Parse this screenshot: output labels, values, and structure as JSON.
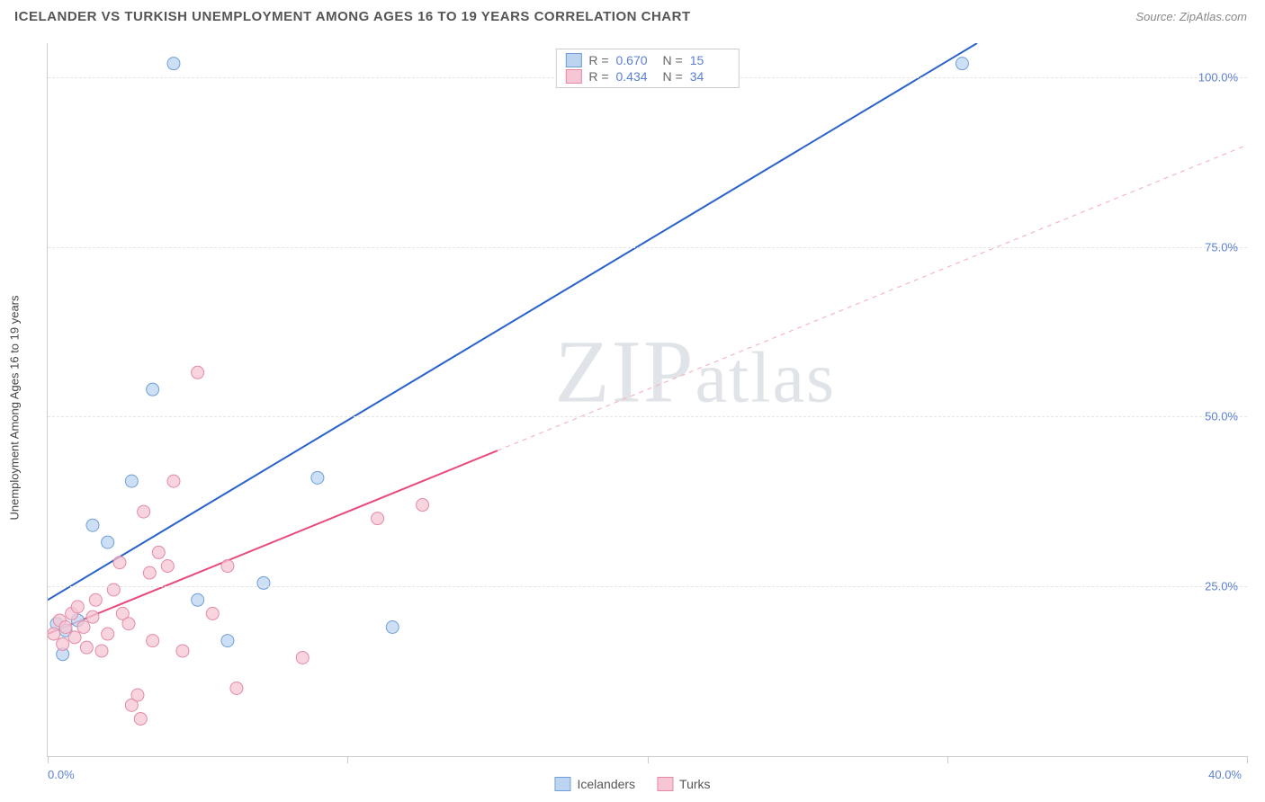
{
  "title": "ICELANDER VS TURKISH UNEMPLOYMENT AMONG AGES 16 TO 19 YEARS CORRELATION CHART",
  "source": "Source: ZipAtlas.com",
  "y_axis_title": "Unemployment Among Ages 16 to 19 years",
  "watermark": "ZIPatlas",
  "chart": {
    "type": "scatter",
    "xlim": [
      0,
      40
    ],
    "ylim": [
      0,
      105
    ],
    "x_ticks": [
      0,
      10,
      20,
      30,
      40
    ],
    "x_tick_labels": [
      "0.0%",
      "",
      "",
      "",
      "40.0%"
    ],
    "y_ticks": [
      25,
      50,
      75,
      100
    ],
    "y_tick_labels": [
      "25.0%",
      "50.0%",
      "75.0%",
      "100.0%"
    ],
    "grid_color": "#e5e5e5",
    "axis_color": "#cccccc",
    "tick_label_color": "#5b7fd1",
    "background_color": "#ffffff",
    "series": [
      {
        "name": "Icelanders",
        "color_fill": "#bcd4f0",
        "color_stroke": "#6f9fd8",
        "marker_radius": 7,
        "marker_opacity": 0.75,
        "R": "0.670",
        "N": "15",
        "trend": {
          "x1": 0,
          "y1": 23,
          "x2": 31,
          "y2": 105,
          "stroke": "#2a63c9",
          "width": 2,
          "dash": "none"
        },
        "trend_ext": null,
        "points": [
          [
            0.3,
            19.5
          ],
          [
            0.5,
            15.0
          ],
          [
            0.6,
            18.5
          ],
          [
            1.0,
            20.0
          ],
          [
            1.5,
            34.0
          ],
          [
            2.0,
            31.5
          ],
          [
            2.8,
            40.5
          ],
          [
            3.5,
            54.0
          ],
          [
            4.2,
            102.0
          ],
          [
            5.0,
            23.0
          ],
          [
            6.0,
            17.0
          ],
          [
            7.2,
            25.5
          ],
          [
            9.0,
            41.0
          ],
          [
            11.5,
            19.0
          ],
          [
            30.5,
            102.0
          ]
        ]
      },
      {
        "name": "Turks",
        "color_fill": "#f6c6d4",
        "color_stroke": "#e48aa5",
        "marker_radius": 7,
        "marker_opacity": 0.75,
        "R": "0.434",
        "N": "34",
        "trend": {
          "x1": 0,
          "y1": 18,
          "x2": 15,
          "y2": 45,
          "stroke": "#e84a7a",
          "width": 2,
          "dash": "none"
        },
        "trend_ext": {
          "x1": 15,
          "y1": 45,
          "x2": 40,
          "y2": 90,
          "stroke": "#f4b6c8",
          "width": 1.2,
          "dash": "5,5"
        },
        "points": [
          [
            0.2,
            18.0
          ],
          [
            0.4,
            20.0
          ],
          [
            0.5,
            16.5
          ],
          [
            0.6,
            19.0
          ],
          [
            0.8,
            21.0
          ],
          [
            0.9,
            17.5
          ],
          [
            1.0,
            22.0
          ],
          [
            1.2,
            19.0
          ],
          [
            1.3,
            16.0
          ],
          [
            1.5,
            20.5
          ],
          [
            1.6,
            23.0
          ],
          [
            1.8,
            15.5
          ],
          [
            2.0,
            18.0
          ],
          [
            2.2,
            24.5
          ],
          [
            2.4,
            28.5
          ],
          [
            2.5,
            21.0
          ],
          [
            2.7,
            19.5
          ],
          [
            2.8,
            7.5
          ],
          [
            3.0,
            9.0
          ],
          [
            3.1,
            5.5
          ],
          [
            3.2,
            36.0
          ],
          [
            3.4,
            27.0
          ],
          [
            3.5,
            17.0
          ],
          [
            3.7,
            30.0
          ],
          [
            4.0,
            28.0
          ],
          [
            4.2,
            40.5
          ],
          [
            4.5,
            15.5
          ],
          [
            5.0,
            56.5
          ],
          [
            5.5,
            21.0
          ],
          [
            6.0,
            28.0
          ],
          [
            6.3,
            10.0
          ],
          [
            8.5,
            14.5
          ],
          [
            11.0,
            35.0
          ],
          [
            12.5,
            37.0
          ]
        ]
      }
    ]
  },
  "legend_bottom": [
    {
      "label": "Icelanders",
      "fill": "#bcd4f0",
      "stroke": "#6f9fd8"
    },
    {
      "label": "Turks",
      "fill": "#f6c6d4",
      "stroke": "#e48aa5"
    }
  ]
}
